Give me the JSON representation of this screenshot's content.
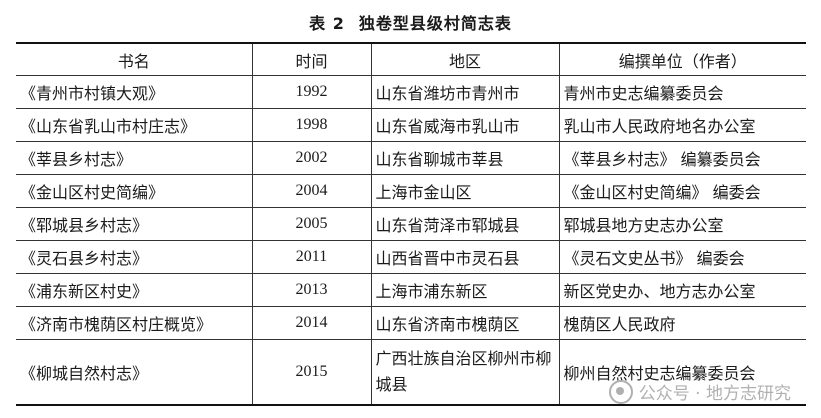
{
  "caption": {
    "number": "表 2",
    "title": "独卷型县级村简志表"
  },
  "headers": {
    "book": "书名",
    "year": "时间",
    "region": "地区",
    "compiler": "编撰单位（作者）"
  },
  "rows": [
    {
      "book": "《青州市村镇大观》",
      "year": "1992",
      "region": "山东省潍坊市青州市",
      "compiler": "青州市史志编纂委员会"
    },
    {
      "book": "《山东省乳山市村庄志》",
      "year": "1998",
      "region": "山东省威海市乳山市",
      "compiler": "乳山市人民政府地名办公室"
    },
    {
      "book": "《莘县乡村志》",
      "year": "2002",
      "region": "山东省聊城市莘县",
      "compiler": "《莘县乡村志》 编纂委员会"
    },
    {
      "book": "《金山区村史简编》",
      "year": "2004",
      "region": "上海市金山区",
      "compiler": "《金山区村史简编》 编委会"
    },
    {
      "book": "《郓城县乡村志》",
      "year": "2005",
      "region": "山东省菏泽市郓城县",
      "compiler": "郓城县地方史志办公室"
    },
    {
      "book": "《灵石县乡村志》",
      "year": "2011",
      "region": "山西省晋中市灵石县",
      "compiler": "《灵石文史丛书》 编委会"
    },
    {
      "book": "《浦东新区村史》",
      "year": "2013",
      "region": "上海市浦东新区",
      "compiler": "新区党史办、地方志办公室"
    },
    {
      "book": "《济南市槐荫区村庄概览》",
      "year": "2014",
      "region": "山东省济南市槐荫区",
      "compiler": "槐荫区人民政府"
    },
    {
      "book": "《柳城自然村志》",
      "year": "2015",
      "region": "广西壮族自治区柳州市柳城县",
      "compiler": "柳州自然村史志编纂委员会"
    }
  ],
  "watermark": "公众号 · 地方志研究"
}
